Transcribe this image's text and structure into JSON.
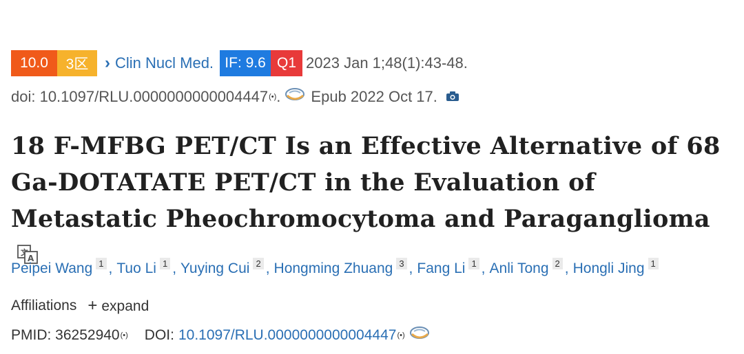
{
  "badges": {
    "score": "10.0",
    "zone": "3区",
    "impact_factor": "IF: 9.6",
    "quartile": "Q1"
  },
  "journal": {
    "name": "Clin Nucl Med.",
    "citation": "2023 Jan 1;48(1):43-48."
  },
  "doi_line": {
    "doi": "doi: 10.1097/RLU.0000000000004447",
    "period": ".",
    "epub": "Epub 2022 Oct 17."
  },
  "title": "18 F-MFBG PET/CT Is an Effective Alternative of 68 Ga-DOTATATE PET/CT in the Evaluation of Metastatic Pheochromocytoma and Paraganglioma",
  "authors": [
    {
      "name": "Peipei Wang",
      "aff": "1"
    },
    {
      "name": "Tuo Li",
      "aff": "1"
    },
    {
      "name": "Yuying Cui",
      "aff": "2"
    },
    {
      "name": "Hongming Zhuang",
      "aff": "3"
    },
    {
      "name": "Fang Li",
      "aff": "1"
    },
    {
      "name": "Anli Tong",
      "aff": "2"
    },
    {
      "name": "Hongli Jing",
      "aff": "1"
    }
  ],
  "affiliations": {
    "label": "Affiliations",
    "expand": "expand"
  },
  "ids": {
    "pmid": "PMID: 36252940",
    "doi_label": "DOI:",
    "doi_value": "10.1097/RLU.0000000000004447"
  }
}
